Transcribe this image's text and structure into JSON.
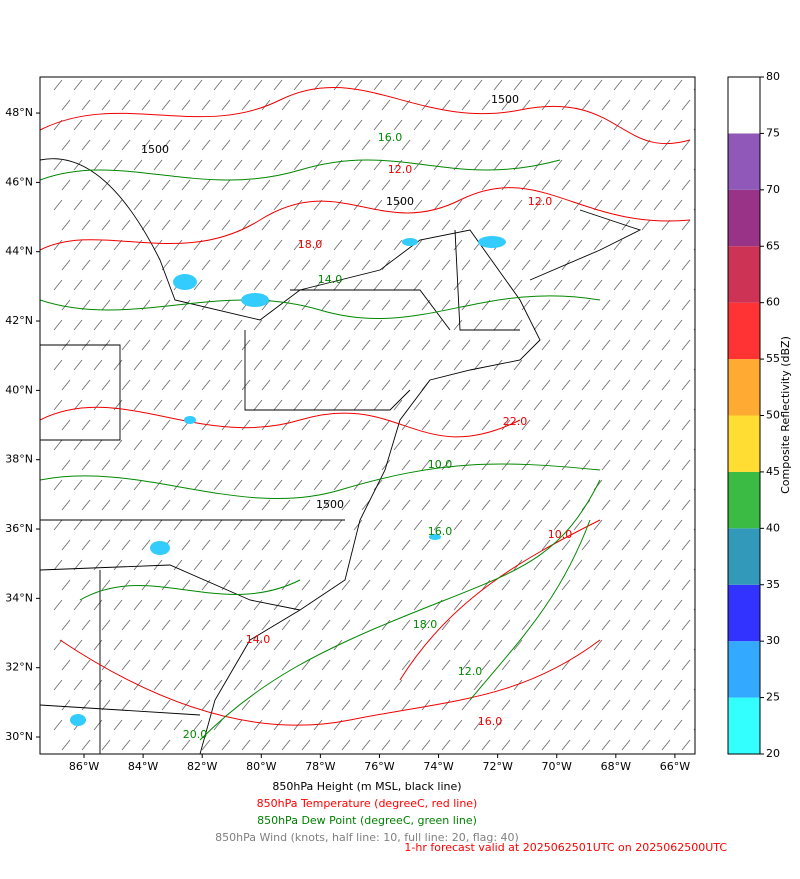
{
  "chart_data": {
    "type": "map",
    "xlim": [
      -87.49,
      -65.32
    ],
    "ylim": [
      29.51,
      49.04
    ],
    "xticks": [
      {
        "value": -86,
        "label": "86°W"
      },
      {
        "value": -84,
        "label": "84°W"
      },
      {
        "value": -82,
        "label": "82°W"
      },
      {
        "value": -80,
        "label": "80°W"
      },
      {
        "value": -78,
        "label": "78°W"
      },
      {
        "value": -76,
        "label": "76°W"
      },
      {
        "value": -74,
        "label": "74°W"
      },
      {
        "value": -72,
        "label": "72°W"
      },
      {
        "value": -70,
        "label": "70°W"
      },
      {
        "value": -68,
        "label": "68°W"
      },
      {
        "value": -66,
        "label": "66°W"
      }
    ],
    "yticks": [
      {
        "value": 30,
        "label": "30°N"
      },
      {
        "value": 32,
        "label": "32°N"
      },
      {
        "value": 34,
        "label": "34°N"
      },
      {
        "value": 36,
        "label": "36°N"
      },
      {
        "value": 38,
        "label": "38°N"
      },
      {
        "value": 40,
        "label": "40°N"
      },
      {
        "value": 42,
        "label": "42°N"
      },
      {
        "value": 44,
        "label": "44°N"
      },
      {
        "value": 46,
        "label": "46°N"
      },
      {
        "value": 48,
        "label": "48°N"
      }
    ],
    "colorbar": {
      "label": "Composite Reflectivity (dBZ)",
      "bounds": [
        20,
        25,
        30,
        35,
        40,
        45,
        50,
        55,
        60,
        65,
        70,
        75,
        80
      ],
      "colors": [
        "#33ffff",
        "#33aaff",
        "#3333ff",
        "#3399bb",
        "#3cbb44",
        "#ffdd33",
        "#ffaa33",
        "#ff3333",
        "#cc3355",
        "#993388",
        "#9058b8",
        "#ffffff"
      ],
      "ticks": [
        20,
        25,
        30,
        35,
        40,
        45,
        50,
        55,
        60,
        65,
        70,
        75,
        80
      ]
    },
    "contour_labels": [
      "1500",
      "1500",
      "1500",
      "1500",
      "16.0",
      "12.0",
      "14.0",
      "18.0",
      "10.0",
      "22.0",
      "20.0",
      "16.0",
      "12.0",
      "14.0",
      "18.0",
      "10.0",
      "16.0",
      "12.0"
    ],
    "captions": [
      {
        "text": "850hPa Height (m MSL, black line)",
        "color": "#000000"
      },
      {
        "text": "850hPa Temperature (degreeC, red line)",
        "color": "#ff0000"
      },
      {
        "text": "850hPa Dew Point (degreeC, green line)",
        "color": "#008000"
      },
      {
        "text": "850hPa Wind (knots, half line: 10, full line: 20, flag: 40)",
        "color": "#808080"
      }
    ],
    "valid_text": "1-hr forecast valid at 2025062501UTC on 2025062500UTC",
    "valid_color": "#ff0000"
  }
}
